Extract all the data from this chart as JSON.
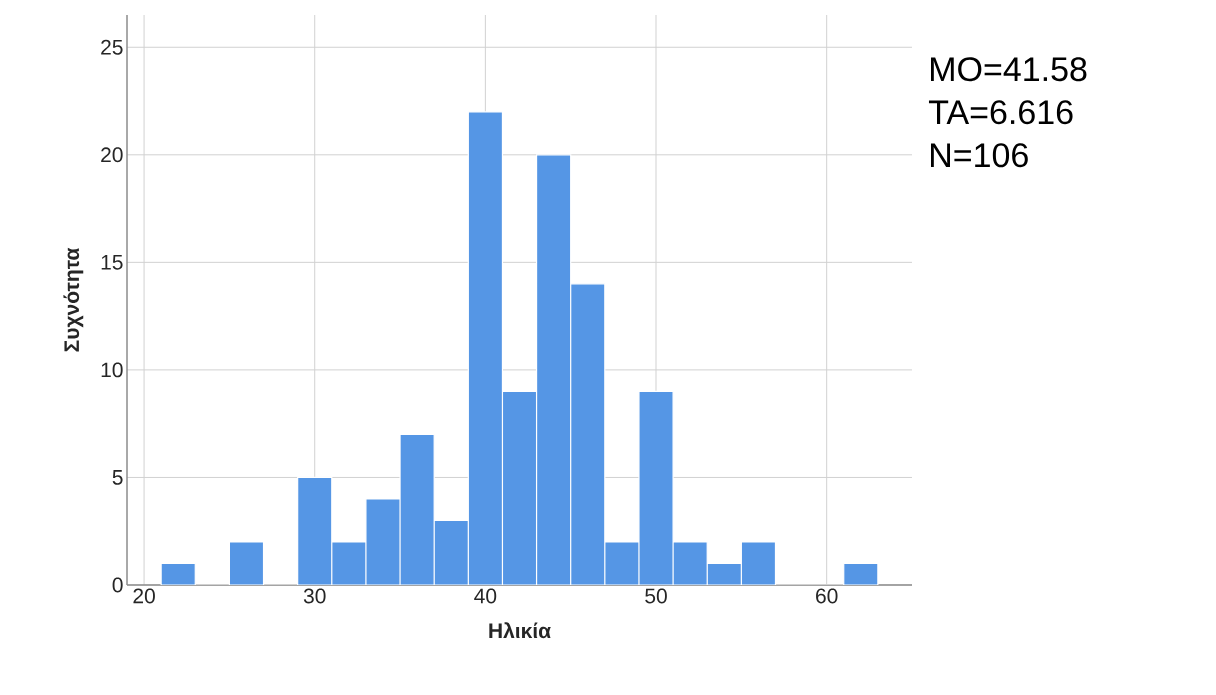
{
  "chart_data": {
    "type": "histogram",
    "xlabel": "Ηλικία",
    "ylabel": "Συχνότητα",
    "bins": [
      21,
      23,
      25,
      27,
      29,
      31,
      33,
      35,
      37,
      39,
      41,
      43,
      45,
      47,
      49,
      51,
      53,
      55,
      57,
      59,
      61,
      63
    ],
    "values": [
      1,
      0,
      2,
      0,
      5,
      2,
      4,
      7,
      3,
      22,
      9,
      20,
      14,
      2,
      9,
      2,
      1,
      2,
      0,
      0,
      1
    ],
    "color": "#5596e5",
    "xlim": [
      19,
      65
    ],
    "ylim": [
      0,
      26.5
    ],
    "xticks": [
      20,
      30,
      40,
      50,
      60
    ],
    "yticks": [
      0,
      5,
      10,
      15,
      20,
      25
    ],
    "grid": true,
    "annotations": [
      "MO=41.58",
      "TA=6.616",
      "N=106"
    ]
  }
}
